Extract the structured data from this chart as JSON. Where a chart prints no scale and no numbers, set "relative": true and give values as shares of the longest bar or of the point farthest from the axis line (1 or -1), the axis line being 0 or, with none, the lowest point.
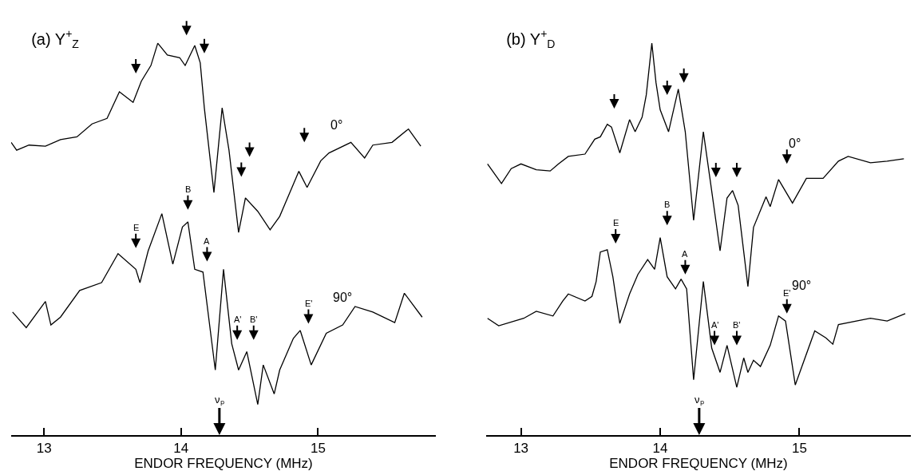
{
  "chart_data": [
    {
      "type": "line",
      "title": "(a) Y$^{+}$$_{Z}$",
      "xlabel": "ENDOR FREQUENCY (MHz)",
      "relative": true,
      "xlim": [
        12.76,
        15.86
      ],
      "xticks": [
        13,
        14,
        15
      ],
      "series": [
        {
          "name": "0°",
          "color": "#000000",
          "x": [
            12.76,
            12.8,
            12.89,
            13.01,
            13.12,
            13.24,
            13.35,
            13.46,
            13.55,
            13.65,
            13.71,
            13.78,
            13.83,
            13.9,
            13.99,
            14.03,
            14.1,
            14.14,
            14.17,
            14.24,
            14.3,
            14.35,
            14.42,
            14.47,
            14.56,
            14.65,
            14.72,
            14.81,
            14.86,
            14.92,
            15.02,
            15.08,
            15.24,
            15.34,
            15.4,
            15.54,
            15.66,
            15.75
          ],
          "values": [
            0.747,
            0.727,
            0.74,
            0.737,
            0.754,
            0.761,
            0.794,
            0.808,
            0.876,
            0.849,
            0.903,
            0.943,
            1.0,
            0.97,
            0.963,
            0.943,
            0.994,
            0.95,
            0.835,
            0.619,
            0.835,
            0.727,
            0.517,
            0.605,
            0.571,
            0.524,
            0.558,
            0.632,
            0.673,
            0.632,
            0.7,
            0.72,
            0.747,
            0.707,
            0.74,
            0.747,
            0.781,
            0.737
          ]
        },
        {
          "name": "90°",
          "color": "#000000",
          "x": [
            12.77,
            12.87,
            13.01,
            13.05,
            13.12,
            13.26,
            13.42,
            13.54,
            13.67,
            13.7,
            13.76,
            13.86,
            13.94,
            14.01,
            14.05,
            14.1,
            14.16,
            14.25,
            14.31,
            14.37,
            14.42,
            14.48,
            14.56,
            14.6,
            14.68,
            14.72,
            14.82,
            14.87,
            14.95,
            15.06,
            15.18,
            15.27,
            15.4,
            15.56,
            15.63,
            15.76
          ],
          "values": [
            0.314,
            0.274,
            0.341,
            0.281,
            0.301,
            0.369,
            0.389,
            0.463,
            0.423,
            0.389,
            0.47,
            0.565,
            0.436,
            0.531,
            0.544,
            0.423,
            0.416,
            0.166,
            0.423,
            0.233,
            0.166,
            0.213,
            0.078,
            0.179,
            0.105,
            0.166,
            0.247,
            0.267,
            0.179,
            0.26,
            0.281,
            0.328,
            0.314,
            0.287,
            0.362,
            0.301
          ]
        }
      ],
      "annotations": [
        "E",
        "B",
        "A",
        "A'",
        "B'",
        "E'",
        "νₚ"
      ]
    },
    {
      "type": "line",
      "title": "(b) Y$^{+}$$_{D}$",
      "xlabel": "ENDOR FREQUENCY (MHz)",
      "relative": true,
      "xlim": [
        12.75,
        15.8
      ],
      "xticks": [
        13,
        14,
        15
      ],
      "series": [
        {
          "name": "0°",
          "color": "#000000",
          "x": [
            12.76,
            12.86,
            12.93,
            13.0,
            13.11,
            13.21,
            13.27,
            13.34,
            13.46,
            13.53,
            13.57,
            13.62,
            13.65,
            13.71,
            13.78,
            13.82,
            13.87,
            13.9,
            13.94,
            13.97,
            14.0,
            14.06,
            14.13,
            14.18,
            14.24,
            14.31,
            14.36,
            14.43,
            14.48,
            14.52,
            14.56,
            14.63,
            14.67,
            14.76,
            14.79,
            14.85,
            14.95,
            15.05,
            15.17,
            15.28,
            15.35,
            15.51,
            15.63,
            15.75
          ],
          "values": [
            0.692,
            0.642,
            0.68,
            0.692,
            0.677,
            0.674,
            0.692,
            0.711,
            0.717,
            0.755,
            0.761,
            0.793,
            0.786,
            0.72,
            0.805,
            0.774,
            0.811,
            0.868,
            1.0,
            0.899,
            0.83,
            0.774,
            0.883,
            0.774,
            0.548,
            0.774,
            0.648,
            0.47,
            0.605,
            0.624,
            0.586,
            0.379,
            0.53,
            0.608,
            0.583,
            0.652,
            0.592,
            0.655,
            0.655,
            0.699,
            0.711,
            0.695,
            0.699,
            0.705
          ]
        },
        {
          "name": "90°",
          "color": "#000000",
          "x": [
            12.76,
            12.84,
            13.02,
            13.11,
            13.23,
            13.3,
            13.34,
            13.46,
            13.51,
            13.54,
            13.57,
            13.62,
            13.66,
            13.71,
            13.78,
            13.84,
            13.91,
            13.96,
            14.0,
            14.05,
            14.11,
            14.15,
            14.19,
            14.24,
            14.31,
            14.37,
            14.43,
            14.48,
            14.55,
            14.6,
            14.63,
            14.67,
            14.72,
            14.79,
            14.85,
            14.9,
            14.97,
            15.11,
            15.19,
            15.24,
            15.28,
            15.51,
            15.63,
            15.76
          ],
          "values": [
            0.298,
            0.279,
            0.298,
            0.316,
            0.304,
            0.342,
            0.36,
            0.342,
            0.354,
            0.392,
            0.467,
            0.473,
            0.404,
            0.285,
            0.36,
            0.41,
            0.448,
            0.423,
            0.504,
            0.404,
            0.373,
            0.398,
            0.373,
            0.141,
            0.392,
            0.222,
            0.16,
            0.229,
            0.122,
            0.197,
            0.16,
            0.191,
            0.175,
            0.229,
            0.304,
            0.291,
            0.128,
            0.266,
            0.248,
            0.232,
            0.282,
            0.298,
            0.291,
            0.31
          ]
        }
      ],
      "annotations": [
        "E",
        "B",
        "A",
        "A'",
        "B'",
        "E'",
        "νₚ"
      ]
    }
  ]
}
